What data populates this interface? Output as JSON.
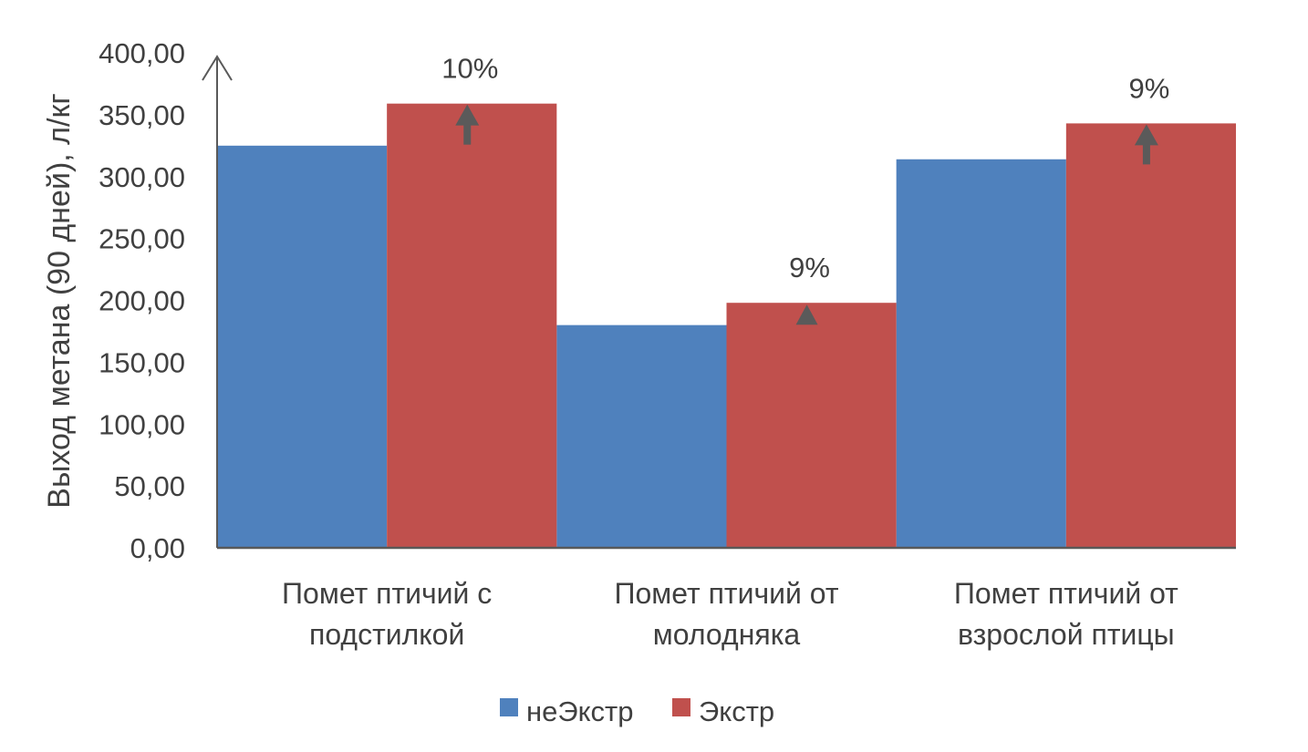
{
  "chart_data": {
    "type": "bar",
    "title": "",
    "xlabel": "",
    "ylabel": "Выход метана (90 дней), л/кг",
    "ylim": [
      0,
      400
    ],
    "yticks": [
      "0,00",
      "50,00",
      "100,00",
      "150,00",
      "200,00",
      "250,00",
      "300,00",
      "350,00",
      "400,00"
    ],
    "grid": false,
    "legend_position": "bottom",
    "categories": [
      [
        "Помет птичий с",
        "подстилкой"
      ],
      [
        "Помет птичий от",
        "молодняка"
      ],
      [
        "Помет птичий от",
        "взрослой птицы"
      ]
    ],
    "series": [
      {
        "name": "неЭкстр",
        "color": "#4f81bd",
        "values": [
          325,
          180,
          314
        ]
      },
      {
        "name": "Экстр",
        "color": "#c0504d",
        "values": [
          359,
          198,
          343
        ]
      }
    ],
    "annotations": [
      {
        "category_index": 0,
        "text": "10%",
        "marker": "up-arrow"
      },
      {
        "category_index": 1,
        "text": "9%",
        "marker": "up-triangle"
      },
      {
        "category_index": 2,
        "text": "9%",
        "marker": "up-arrow"
      }
    ],
    "arrow_color": "#5a5a5a"
  }
}
